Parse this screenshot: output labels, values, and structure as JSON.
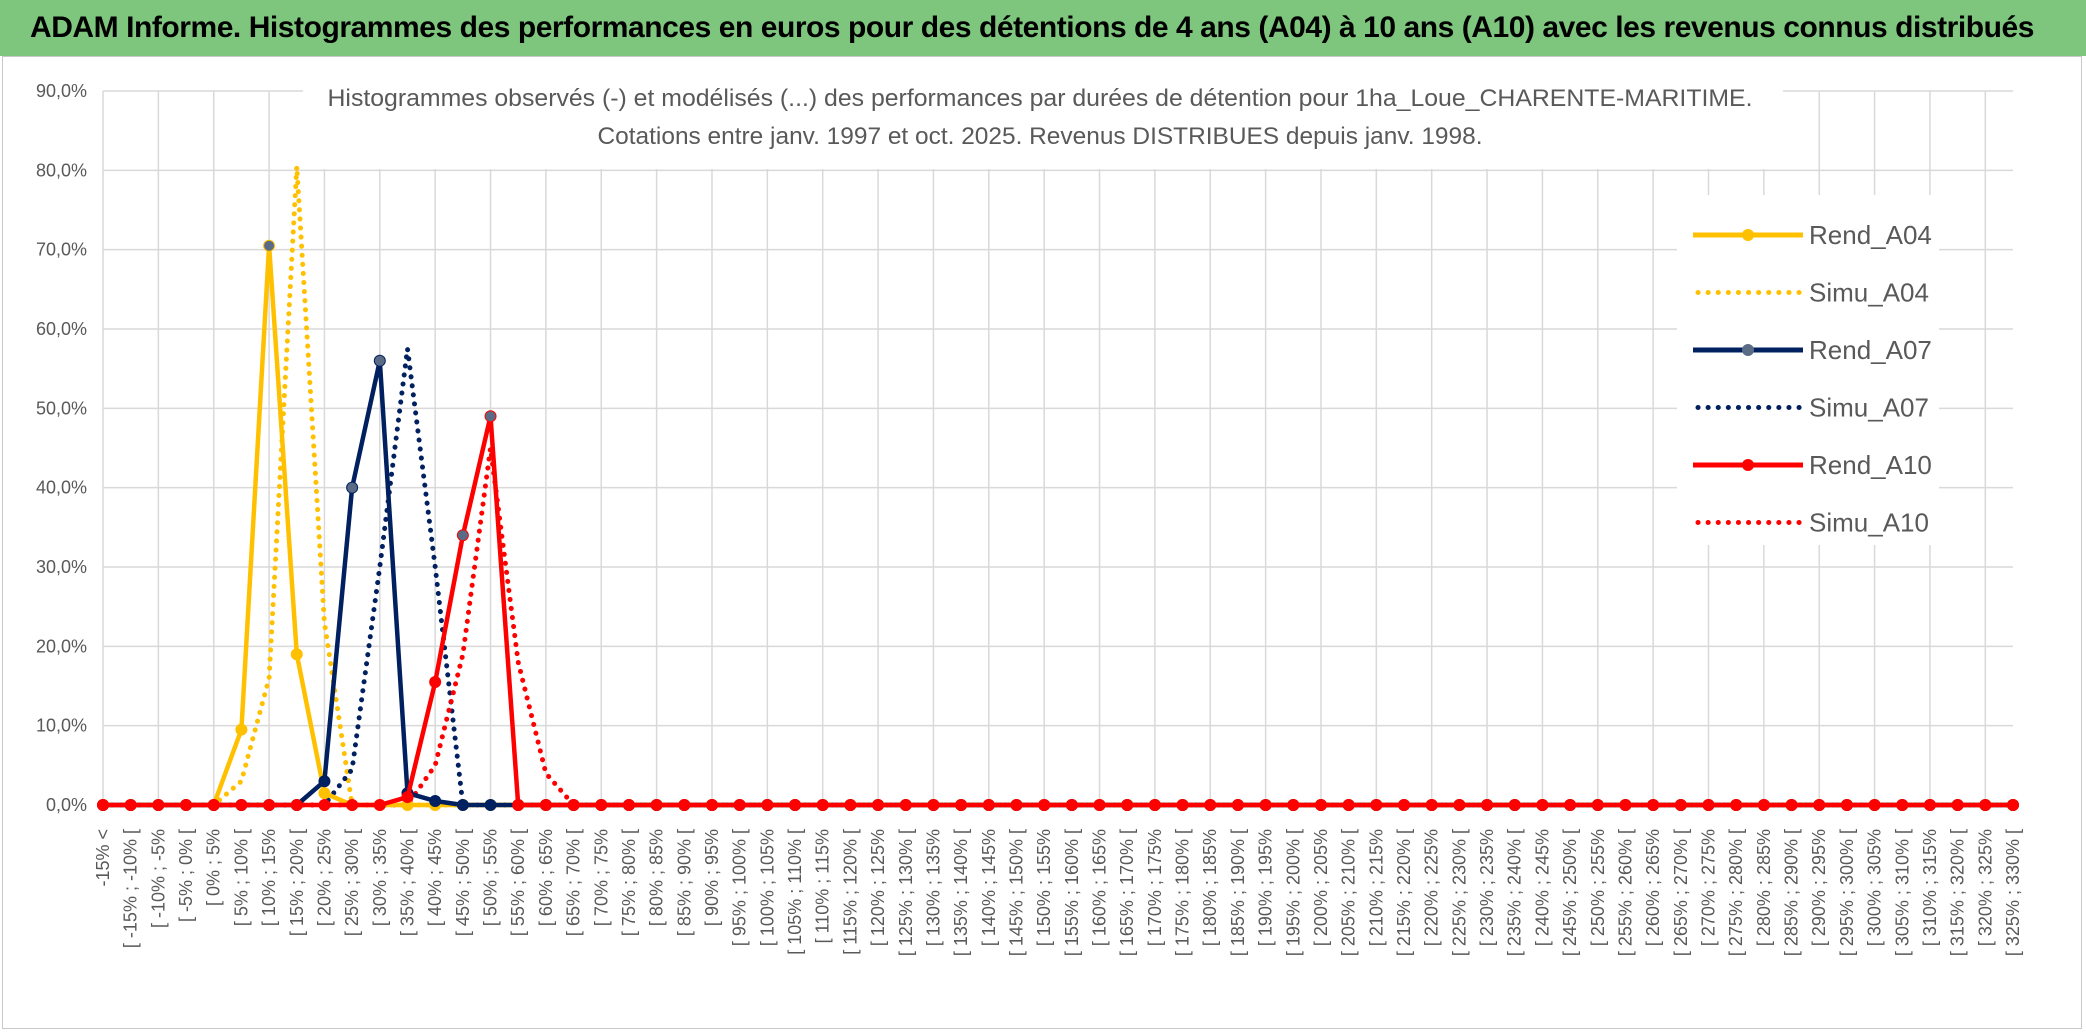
{
  "banner": {
    "title": "ADAM Informe. Histogrammes des performances en euros pour des détentions de 4 ans (A04) à 10 ans (A10) avec les revenus connus distribués"
  },
  "colors": {
    "A04": "#ffc000",
    "A07": "#002060",
    "A10": "#ff0000",
    "banner": "#7ec67d",
    "grid": "#d9d9d9"
  },
  "chart_data": {
    "type": "line",
    "title": "Histogrammes observés (-) et modélisés (...) des performances par durées de détention pour 1ha_Loue_CHARENTE-MARITIME.",
    "subtitle": "Cotations entre janv. 1997 et oct. 2025. Revenus DISTRIBUES depuis janv. 1998.",
    "xlabel": "",
    "ylabel": "",
    "ylim": [
      0,
      0.9
    ],
    "yticks": [
      "0,0%",
      "10,0%",
      "20,0%",
      "30,0%",
      "40,0%",
      "50,0%",
      "60,0%",
      "70,0%",
      "80,0%",
      "90,0%"
    ],
    "grid": true,
    "legend_position": "right",
    "categories": [
      "-15% <",
      "[ -15% ; -10% [",
      "[ -10% ; -5%",
      "[ -5% ; 0% [",
      "[ 0% ; 5%",
      "[ 5% ; 10% [",
      "[ 10% ; 15%",
      "[ 15% ; 20% [",
      "[ 20% ; 25%",
      "[ 25% ; 30% [",
      "[ 30% ; 35%",
      "[ 35% ; 40% [",
      "[ 40% ; 45%",
      "[ 45% ; 50% [",
      "[ 50% ; 55%",
      "[ 55% ; 60% [",
      "[ 60% ; 65%",
      "[ 65% ; 70% [",
      "[ 70% ; 75%",
      "[ 75% ; 80% [",
      "[ 80% ; 85%",
      "[ 85% ; 90% [",
      "[ 90% ; 95%",
      "[ 95% ; 100% [",
      "[ 100% ; 105%",
      "[ 105% ; 110% [",
      "[ 110% ; 115%",
      "[ 115% ; 120% [",
      "[ 120% ; 125%",
      "[ 125% ; 130% [",
      "[ 130% ; 135%",
      "[ 135% ; 140% [",
      "[ 140% ; 145%",
      "[ 145% ; 150% [",
      "[ 150% ; 155%",
      "[ 155% ; 160% [",
      "[ 160% ; 165%",
      "[ 165% ; 170% [",
      "[ 170% ; 175%",
      "[ 175% ; 180% [",
      "[ 180% ; 185%",
      "[ 185% ; 190% [",
      "[ 190% ; 195%",
      "[ 195% ; 200% [",
      "[ 200% ; 205%",
      "[ 205% ; 210% [",
      "[ 210% ; 215%",
      "[ 215% ; 220% [",
      "[ 220% ; 225%",
      "[ 225% ; 230% [",
      "[ 230% ; 235%",
      "[ 235% ; 240% [",
      "[ 240% ; 245%",
      "[ 245% ; 250% [",
      "[ 250% ; 255%",
      "[ 255% ; 260% [",
      "[ 260% ; 265%",
      "[ 265% ; 270% [",
      "[ 270% ; 275%",
      "[ 275% ; 280% [",
      "[ 280% ; 285%",
      "[ 285% ; 290% [",
      "[ 290% ; 295%",
      "[ 295% ; 300% [",
      "[ 300% ; 305%",
      "[ 305% ; 310% [",
      "[ 310% ; 315%",
      "[ 315% ; 320% [",
      "[ 320% ; 325%",
      "[ 325% ; 330% ["
    ],
    "series": [
      {
        "name": "Rend_A04",
        "style": "solid",
        "color": "#ffc000",
        "values": [
          0,
          0,
          0,
          0,
          0,
          0.095,
          0.705,
          0.19,
          0.015,
          0,
          0,
          0,
          0,
          0,
          0,
          0,
          0,
          0,
          0,
          0,
          0,
          0,
          0,
          0,
          0,
          0,
          0,
          0,
          0,
          0,
          0,
          0,
          0,
          0,
          0,
          0,
          0,
          0,
          0,
          0,
          0,
          0,
          0,
          0,
          0,
          0,
          0,
          0,
          0,
          0,
          0,
          0,
          0,
          0,
          0,
          0,
          0,
          0,
          0,
          0,
          0,
          0,
          0,
          0,
          0,
          0,
          0,
          0,
          0,
          0
        ]
      },
      {
        "name": "Simu_A04",
        "style": "dotted",
        "color": "#ffc000",
        "values": [
          0,
          0,
          0,
          0,
          0,
          0.03,
          0.16,
          0.805,
          0.23,
          0,
          0,
          0,
          0,
          0,
          0,
          0,
          0,
          0,
          0,
          0,
          0,
          0,
          0,
          0,
          0,
          0,
          0,
          0,
          0,
          0,
          0,
          0,
          0,
          0,
          0,
          0,
          0,
          0,
          0,
          0,
          0,
          0,
          0,
          0,
          0,
          0,
          0,
          0,
          0,
          0,
          0,
          0,
          0,
          0,
          0,
          0,
          0,
          0,
          0,
          0,
          0,
          0,
          0,
          0,
          0,
          0,
          0,
          0,
          0,
          0
        ]
      },
      {
        "name": "Rend_A07",
        "style": "solid",
        "color": "#002060",
        "values": [
          0,
          0,
          0,
          0,
          0,
          0,
          0,
          0,
          0.03,
          0.4,
          0.56,
          0.015,
          0.005,
          0,
          0,
          0,
          0,
          0,
          0,
          0,
          0,
          0,
          0,
          0,
          0,
          0,
          0,
          0,
          0,
          0,
          0,
          0,
          0,
          0,
          0,
          0,
          0,
          0,
          0,
          0,
          0,
          0,
          0,
          0,
          0,
          0,
          0,
          0,
          0,
          0,
          0,
          0,
          0,
          0,
          0,
          0,
          0,
          0,
          0,
          0,
          0,
          0,
          0,
          0,
          0,
          0,
          0,
          0,
          0,
          0
        ]
      },
      {
        "name": "Simu_A07",
        "style": "dotted",
        "color": "#002060",
        "values": [
          0,
          0,
          0,
          0,
          0,
          0,
          0,
          0,
          0,
          0.045,
          0.3,
          0.575,
          0.3,
          0,
          0,
          0,
          0,
          0,
          0,
          0,
          0,
          0,
          0,
          0,
          0,
          0,
          0,
          0,
          0,
          0,
          0,
          0,
          0,
          0,
          0,
          0,
          0,
          0,
          0,
          0,
          0,
          0,
          0,
          0,
          0,
          0,
          0,
          0,
          0,
          0,
          0,
          0,
          0,
          0,
          0,
          0,
          0,
          0,
          0,
          0,
          0,
          0,
          0,
          0,
          0,
          0,
          0,
          0,
          0,
          0
        ]
      },
      {
        "name": "Rend_A10",
        "style": "solid",
        "color": "#ff0000",
        "values": [
          0,
          0,
          0,
          0,
          0,
          0,
          0,
          0,
          0,
          0,
          0,
          0.01,
          0.155,
          0.34,
          0.49,
          0,
          0,
          0,
          0,
          0,
          0,
          0,
          0,
          0,
          0,
          0,
          0,
          0,
          0,
          0,
          0,
          0,
          0,
          0,
          0,
          0,
          0,
          0,
          0,
          0,
          0,
          0,
          0,
          0,
          0,
          0,
          0,
          0,
          0,
          0,
          0,
          0,
          0,
          0,
          0,
          0,
          0,
          0,
          0,
          0,
          0,
          0,
          0,
          0,
          0,
          0,
          0,
          0,
          0,
          0
        ]
      },
      {
        "name": "Simu_A10",
        "style": "dotted",
        "color": "#ff0000",
        "values": [
          0,
          0,
          0,
          0,
          0,
          0,
          0,
          0,
          0,
          0,
          0,
          0,
          0.05,
          0.19,
          0.45,
          0.18,
          0.04,
          0,
          0,
          0,
          0,
          0,
          0,
          0,
          0,
          0,
          0,
          0,
          0,
          0,
          0,
          0,
          0,
          0,
          0,
          0,
          0,
          0,
          0,
          0,
          0,
          0,
          0,
          0,
          0,
          0,
          0,
          0,
          0,
          0,
          0,
          0,
          0,
          0,
          0,
          0,
          0,
          0,
          0,
          0,
          0,
          0,
          0,
          0,
          0,
          0,
          0,
          0,
          0,
          0
        ]
      }
    ]
  }
}
